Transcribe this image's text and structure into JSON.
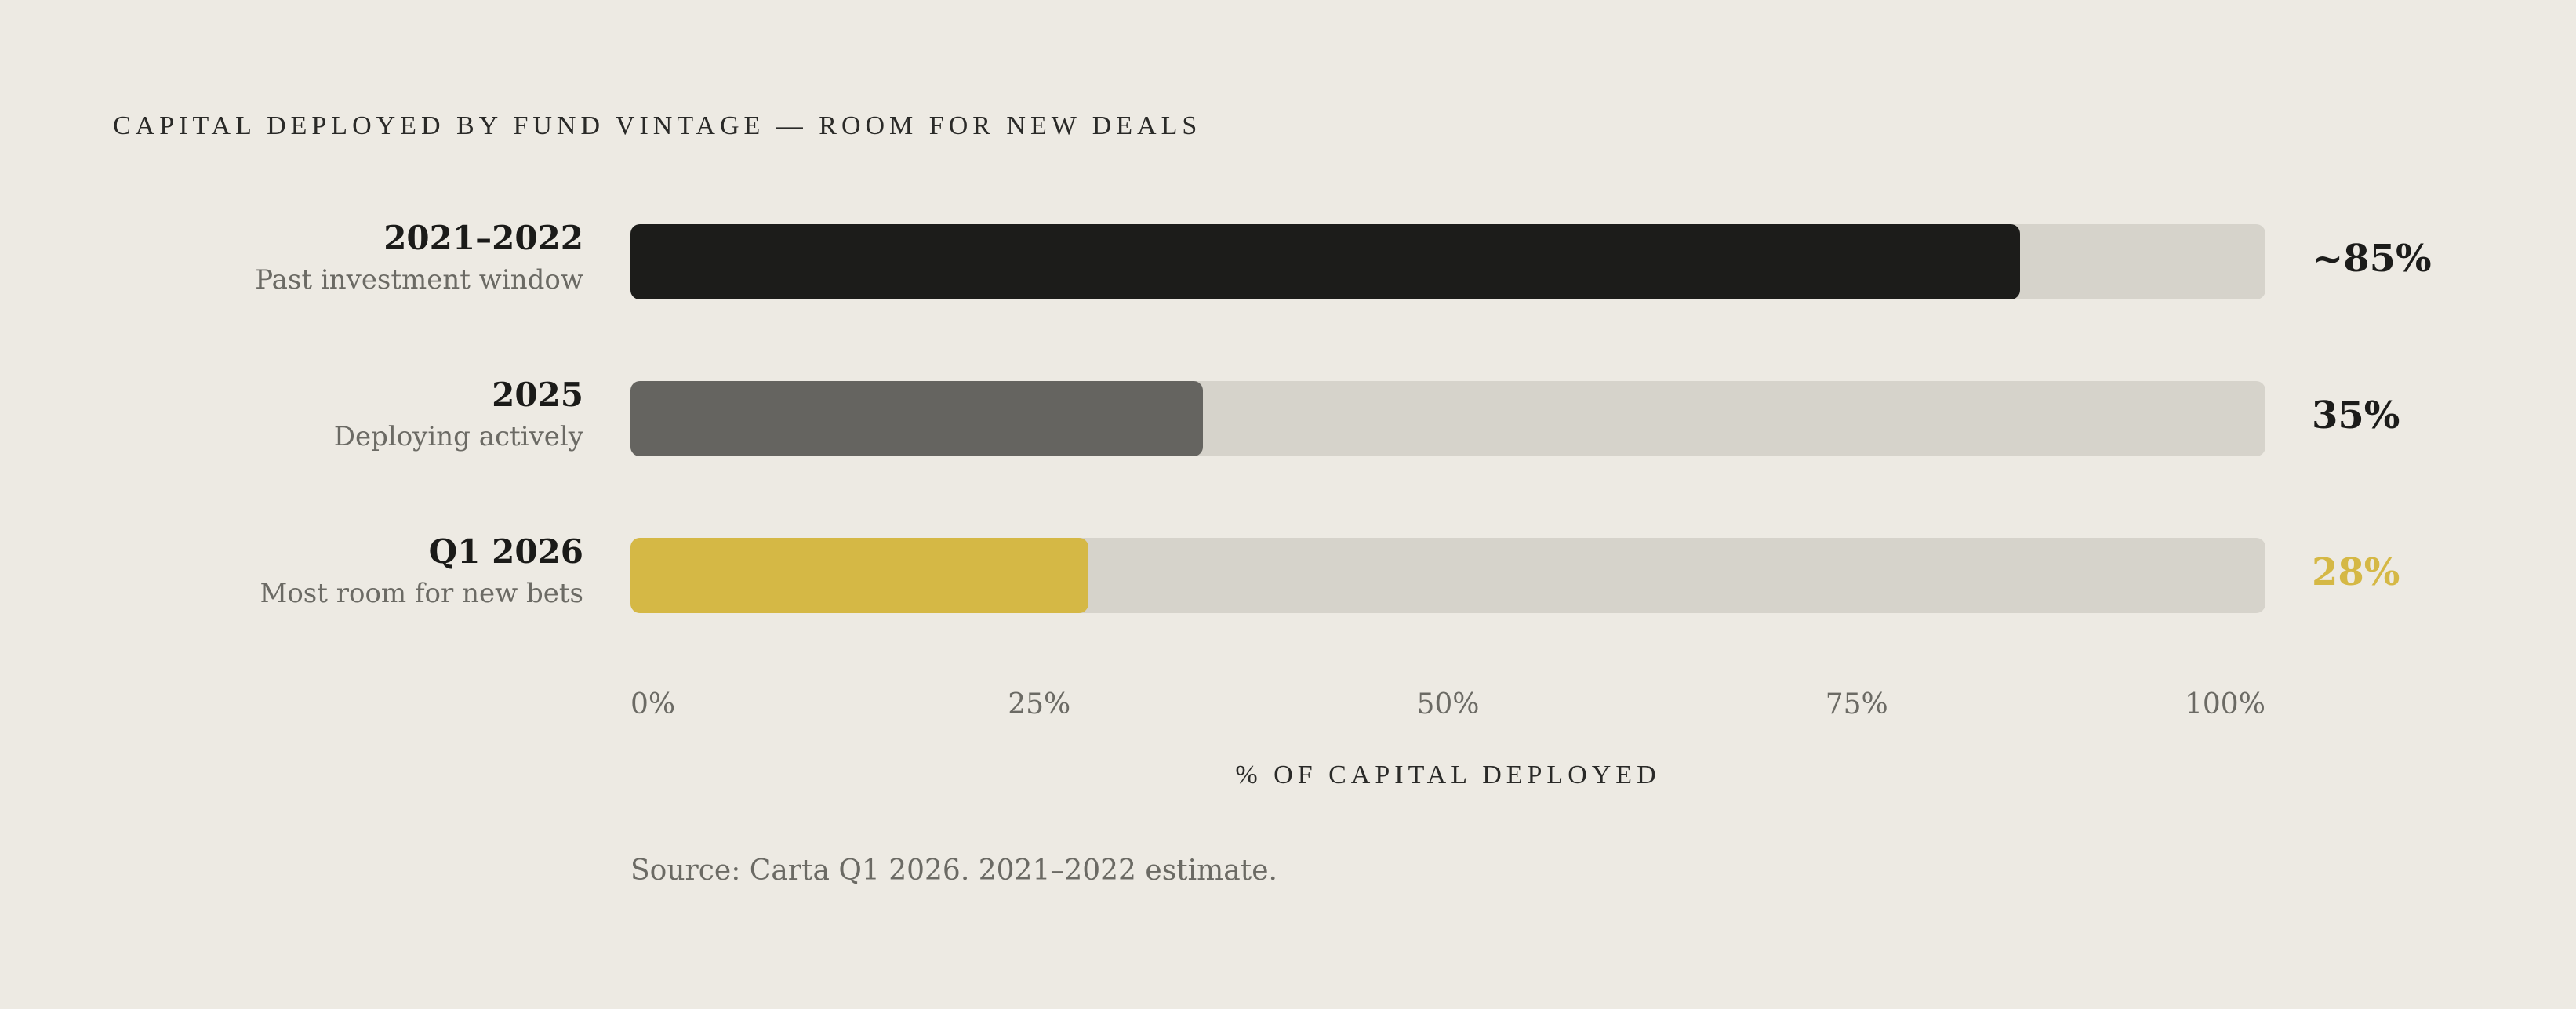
{
  "chart_data": {
    "type": "bar",
    "orientation": "horizontal",
    "title": "CAPITAL DEPLOYED BY FUND VINTAGE — ROOM FOR NEW DEALS",
    "xlabel": "% OF CAPITAL DEPLOYED",
    "ylabel": "",
    "xlim": [
      0,
      100
    ],
    "ticks": [
      "0%",
      "25%",
      "50%",
      "75%",
      "100%"
    ],
    "tick_values": [
      0,
      25,
      50,
      75,
      100
    ],
    "grid": false,
    "legend": "none",
    "categories": [
      {
        "label": "2021–2022",
        "sublabel": "Past investment window",
        "value": 85,
        "display": "~85%",
        "color": "#1c1c1a",
        "value_color": "#1c1c1a"
      },
      {
        "label": "2025",
        "sublabel": "Deploying actively",
        "value": 35,
        "display": "35%",
        "color": "#656460",
        "value_color": "#1c1c1a"
      },
      {
        "label": "Q1 2026",
        "sublabel": "Most room for new bets",
        "value": 28,
        "display": "28%",
        "color": "#d5b845",
        "value_color": "#d5b845"
      }
    ],
    "track_color": "#d6d3cb",
    "source": "Source: Carta Q1 2026. 2021–2022 estimate."
  }
}
